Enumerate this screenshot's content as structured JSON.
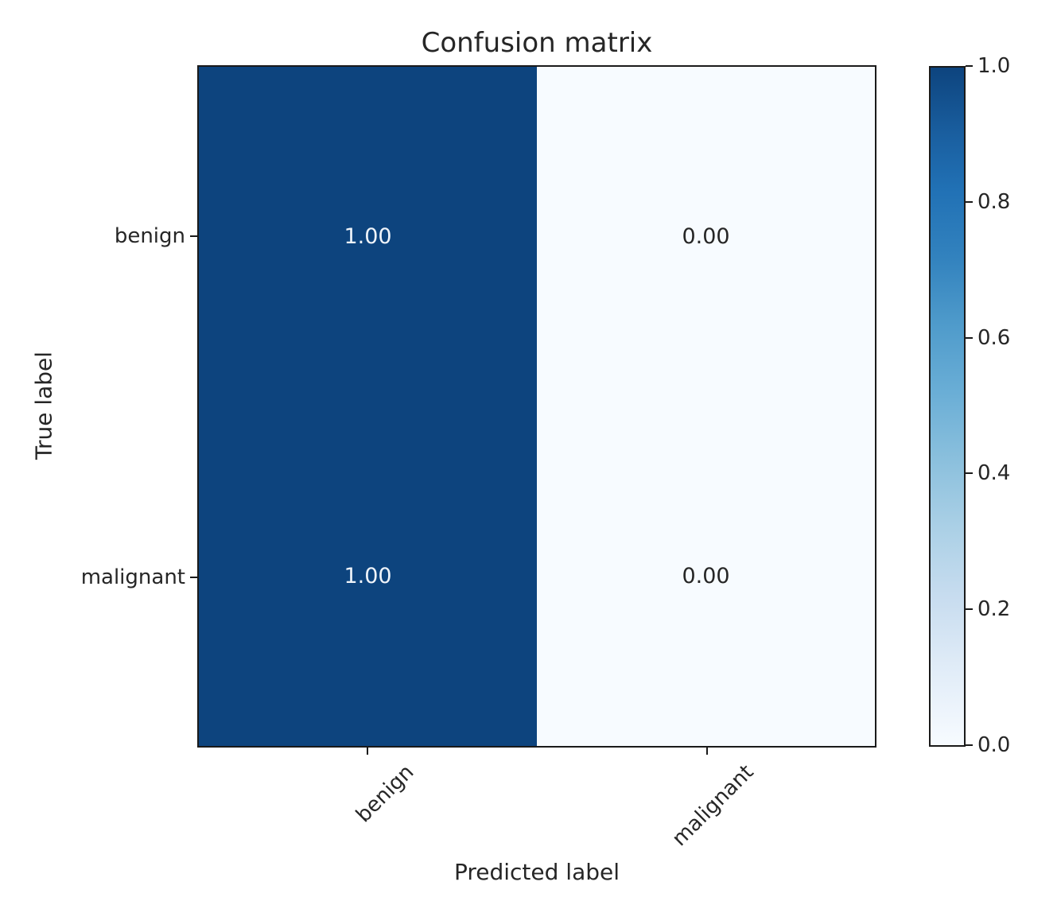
{
  "chart_data": {
    "type": "heatmap",
    "title": "Confusion matrix",
    "xlabel": "Predicted label",
    "ylabel": "True label",
    "x_categories": [
      "benign",
      "malignant"
    ],
    "y_categories": [
      "benign",
      "malignant"
    ],
    "matrix": [
      [
        1.0,
        0.0
      ],
      [
        1.0,
        0.0
      ]
    ],
    "cell_labels": [
      [
        "1.00",
        "0.00"
      ],
      [
        "1.00",
        "0.00"
      ]
    ],
    "value_range": [
      0.0,
      1.0
    ],
    "colormap": "Blues",
    "grid": false,
    "legend_position": "right-colorbar",
    "colorbar_ticks": [
      "1.0",
      "0.8",
      "0.6",
      "0.4",
      "0.2",
      "0.0"
    ],
    "colors": {
      "cell_max": "#0d447e",
      "cell_min": "#f7fbff",
      "text_on_dark": "#eff4fa",
      "text_on_light": "#262626",
      "axis": "#1a1a1a",
      "label_text": "#262626"
    },
    "colorbar_gradient_top_to_bottom": [
      "#0d447e 0%",
      "#1a5fa0 10%",
      "#2171b5 18%",
      "#3282be 28%",
      "#4f9bcb 38%",
      "#6aaed6 48%",
      "#8bc0dd 58%",
      "#abd0e6 68%",
      "#c7dcef 78%",
      "#dfebf7 88%",
      "#f7fbff 100%"
    ]
  }
}
